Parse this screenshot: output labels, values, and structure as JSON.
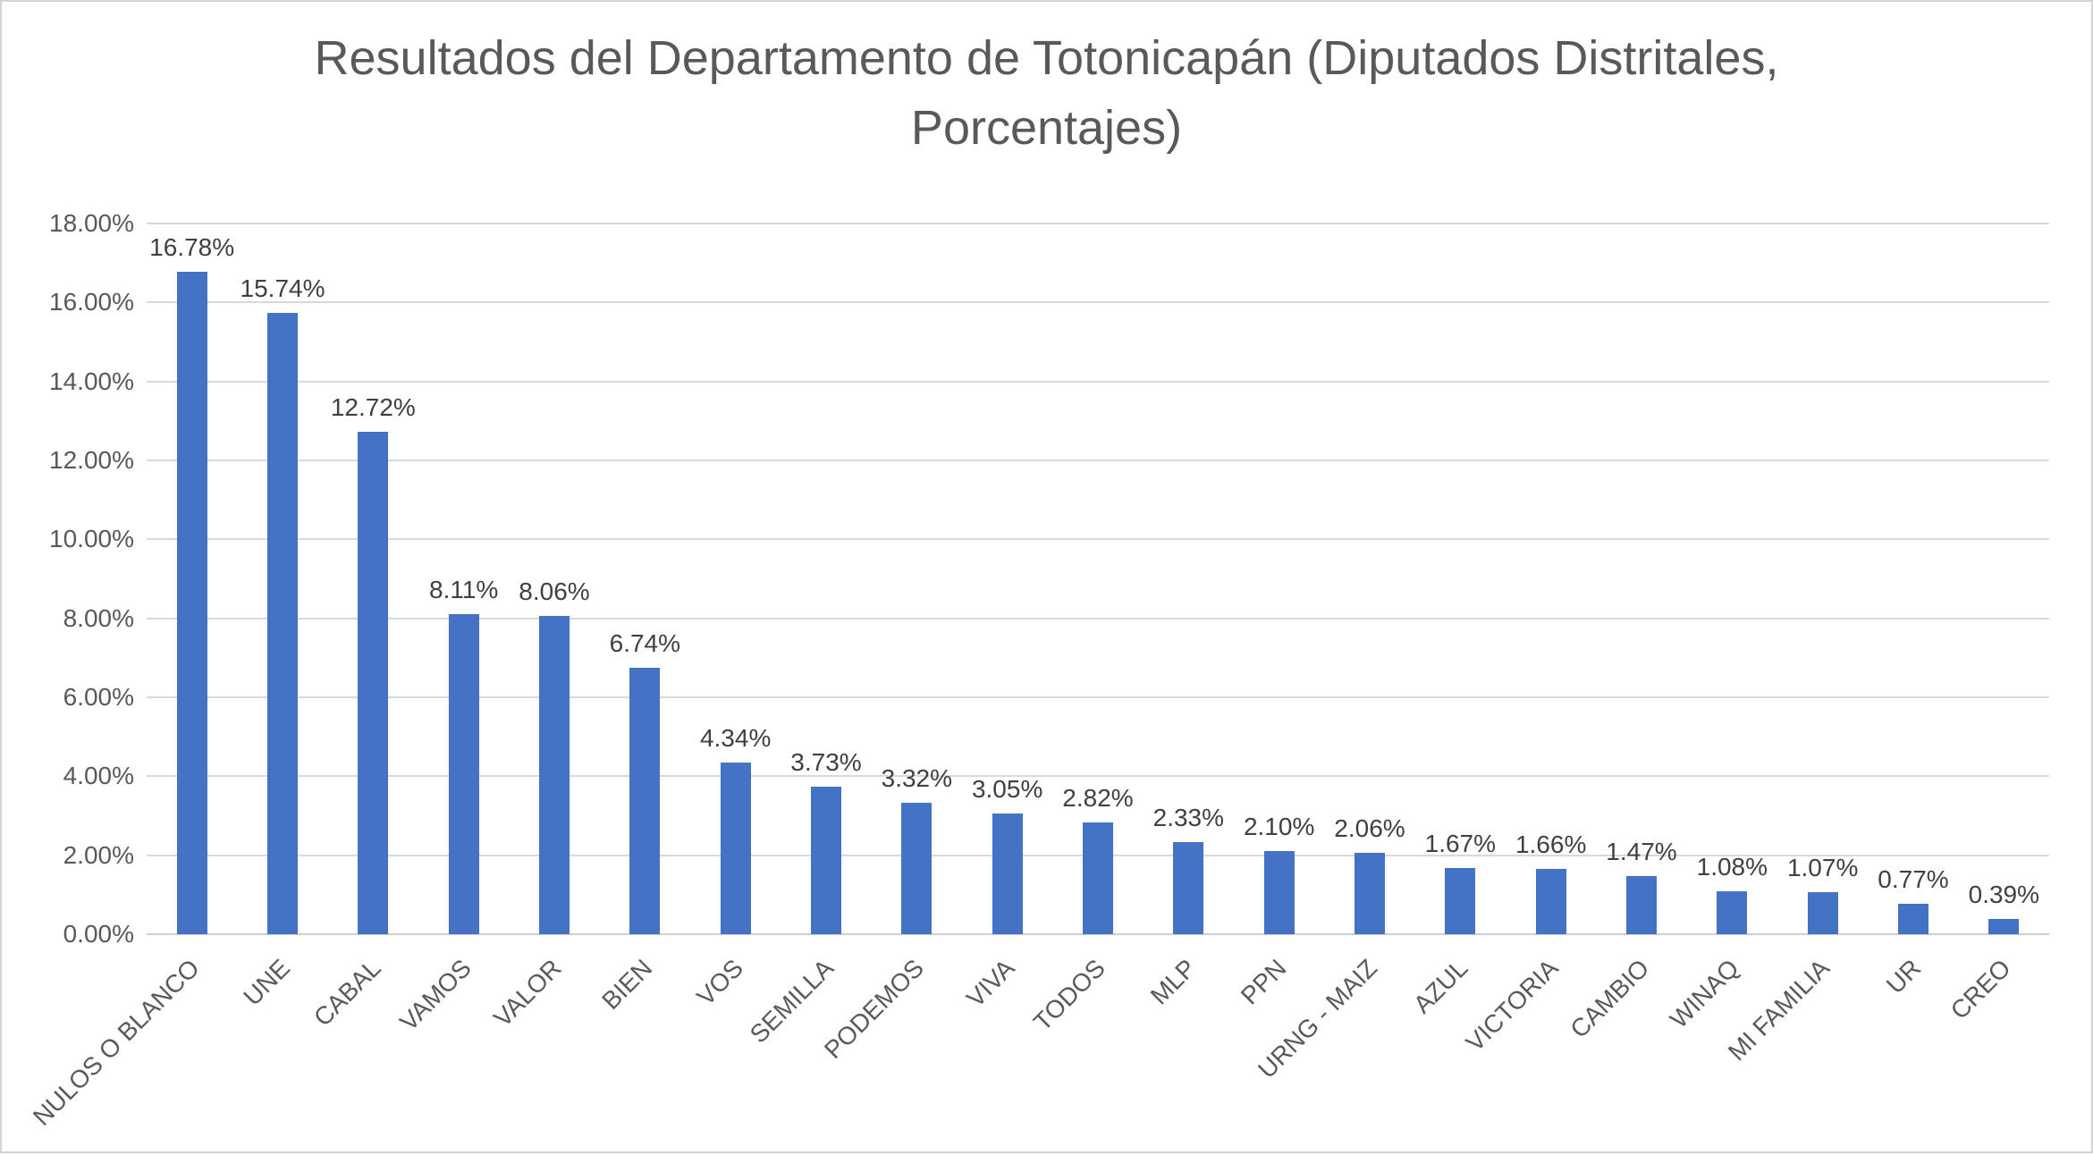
{
  "chart_data": {
    "type": "bar",
    "title": "Resultados del Departamento de Totonicapán (Diputados Distritales, Porcentajes)",
    "title_lines": [
      "Resultados del Departamento de Totonicapán (Diputados Distritales,",
      "Porcentajes)"
    ],
    "categories": [
      "NULOS O BLANCO",
      "UNE",
      "CABAL",
      "VAMOS",
      "VALOR",
      "BIEN",
      "VOS",
      "SEMILLA",
      "PODEMOS",
      "VIVA",
      "TODOS",
      "MLP",
      "PPN",
      "URNG - MAIZ",
      "AZUL",
      "VICTORIA",
      "CAMBIO",
      "WINAQ",
      "MI FAMILIA",
      "UR",
      "CREO"
    ],
    "values": [
      16.78,
      15.74,
      12.72,
      8.11,
      8.06,
      6.74,
      4.34,
      3.73,
      3.32,
      3.05,
      2.82,
      2.33,
      2.1,
      2.06,
      1.67,
      1.66,
      1.47,
      1.08,
      1.07,
      0.77,
      0.39
    ],
    "value_labels": [
      "16.78%",
      "15.74%",
      "12.72%",
      "8.11%",
      "8.06%",
      "6.74%",
      "4.34%",
      "3.73%",
      "3.32%",
      "3.05%",
      "2.82%",
      "2.33%",
      "2.10%",
      "2.06%",
      "1.67%",
      "1.66%",
      "1.47%",
      "1.08%",
      "1.07%",
      "0.77%",
      "0.39%"
    ],
    "xlabel": "",
    "ylabel": "",
    "ylim": [
      0,
      18
    ],
    "y_ticks": [
      "18.00%",
      "16.00%",
      "14.00%",
      "12.00%",
      "10.00%",
      "8.00%",
      "6.00%",
      "4.00%",
      "2.00%",
      "0.00%"
    ],
    "grid": true,
    "legend": false,
    "bar_color": "#4472C4",
    "gridline_color": "#D9D9D9",
    "axis_label_color": "#595959",
    "data_label_color": "#404040",
    "title_color": "#595959"
  }
}
